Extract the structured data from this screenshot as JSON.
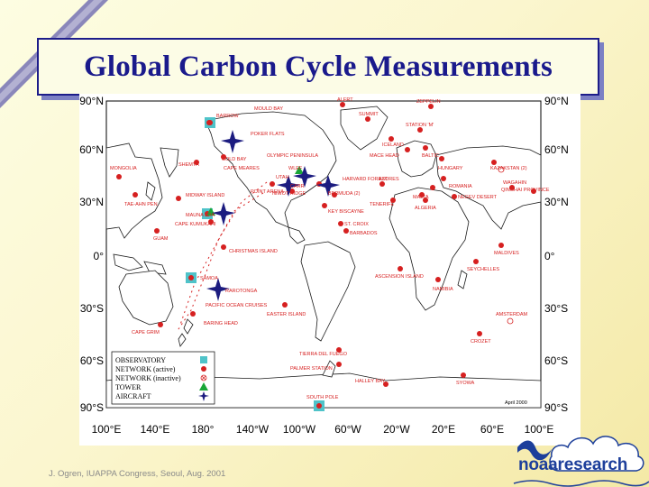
{
  "slide": {
    "title": "Global Carbon Cycle Measurements",
    "footer": "J. Ogren, IUAPPA Congress, Seoul, Aug. 2001",
    "logo": {
      "text": "noaaresearch",
      "colors": {
        "primary": "#1d3f9b"
      }
    }
  },
  "map": {
    "lat_labels_left": [
      "90°N",
      "60°N",
      "30°N",
      "0°",
      "30°S",
      "60°S",
      "90°S"
    ],
    "lat_labels_right": [
      "90°N",
      "60°N",
      "30°N",
      "0°",
      "30°S",
      "60°S",
      "90°S"
    ],
    "lon_labels": [
      "100°E",
      "140°E",
      "180°",
      "140°W",
      "100°W",
      "60°W",
      "20°W",
      "20°E",
      "60°E",
      "100°E"
    ],
    "date_stamp": "April 2000",
    "legend": [
      {
        "label": "OBSERVATORY",
        "symbol": "square",
        "color": "#4fc3c9"
      },
      {
        "label": "NETWORK (active)",
        "symbol": "dot",
        "color": "#d62020"
      },
      {
        "label": "NETWORK (inactive)",
        "symbol": "circle-x",
        "color": "#d62020"
      },
      {
        "label": "TOWER",
        "symbol": "triangle",
        "color": "#1aa637"
      },
      {
        "label": "AIRCRAFT",
        "symbol": "star",
        "color": "#1c1c80"
      }
    ],
    "site_labels": [
      "ALERT",
      "ZEPPELIN",
      "SUMMIT",
      "MOULD BAY",
      "BARROW",
      "STATION 'M'",
      "ICELAND",
      "POKER FLATS",
      "COLD BAY",
      "SHEMYA",
      "MONGOLIA",
      "MACE HEAD",
      "BALTIC",
      "HUNGARY",
      "KAZAKSTAN (2)",
      "OLYMPIC PENINSULA",
      "CAPE MEARES",
      "UTAH",
      "NIWOT RIDGE",
      "WLEF",
      "CARR",
      "HARVARD FOREST",
      "BERMUDA (2)",
      "AZORES",
      "ROMANIA",
      "WAQUANQUAN",
      "WAGAHIN",
      "TAE-AHN PEN.",
      "MIDWAY ISLAND",
      "POINT ARENA",
      "KEY BISCAYNE",
      "TENERIFE",
      "MALTA",
      "ALGERIA",
      "NEGEV DESERT",
      "QINGHAI PROVINCE",
      "CAPE KUMUKAHI",
      "MAUNA LOA",
      "GUAM",
      "ST. CROIX",
      "BARBADOS",
      "CHRISTMAS ISLAND",
      "MALDIVES",
      "SEYCHELLES",
      "ASCENSION ISLAND",
      "SAMOA",
      "RAROTONGA",
      "NAMIBIA",
      "PACIFIC OCEAN CRUISES",
      "EASTER ISLAND",
      "AMSTERDAM",
      "BARING HEAD",
      "CAPE GRIM",
      "CROZET",
      "TIERRA DEL FUEGO",
      "PALMER STATION",
      "HALLEY BAY",
      "SYOWA",
      "SOUTH POLE"
    ]
  }
}
